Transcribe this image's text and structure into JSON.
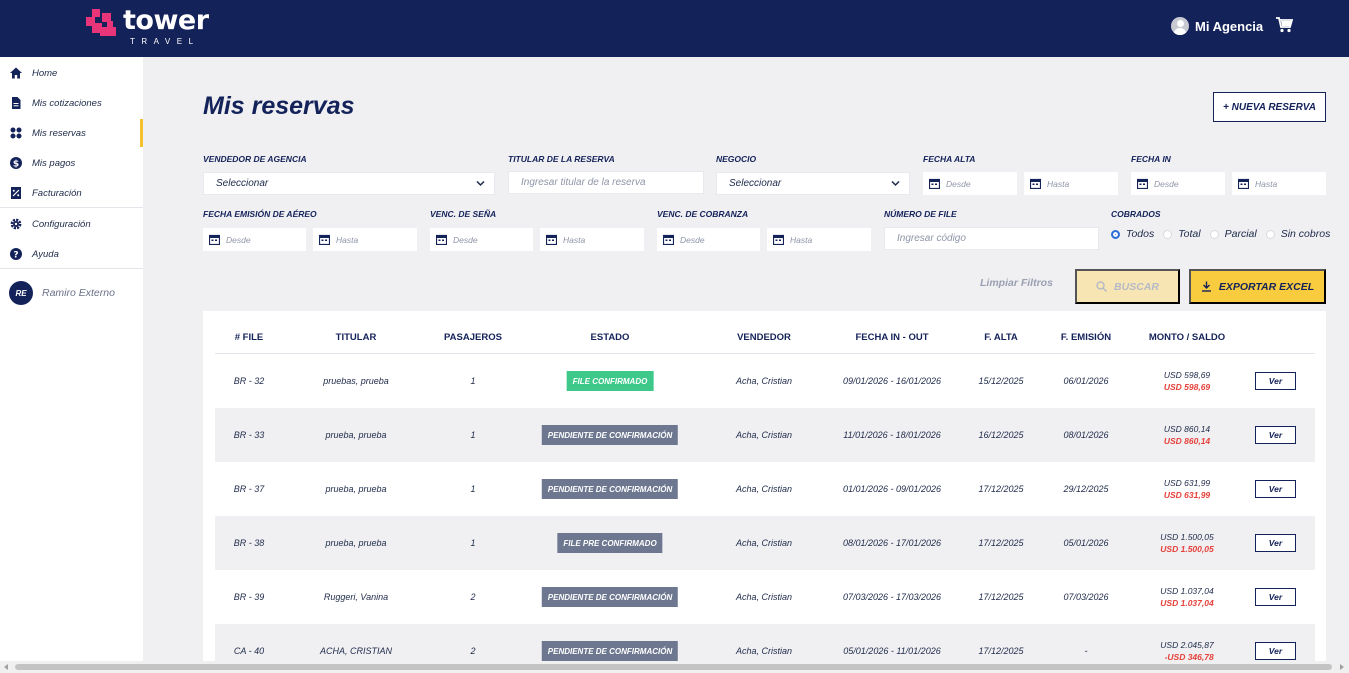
{
  "brand": {
    "name": "tower",
    "sub": "TRAVEL",
    "accent": "#e8357a",
    "navy": "#14225a"
  },
  "header": {
    "user_name": "Mi Agencia",
    "cart_icon": "cart-icon",
    "avatar_icon": "user-avatar-icon"
  },
  "sidebar": {
    "items": [
      {
        "label": "Home",
        "icon": "home-icon"
      },
      {
        "label": "Mis cotizaciones",
        "icon": "document-icon"
      },
      {
        "label": "Mis reservas",
        "icon": "grid-icon",
        "active": true
      },
      {
        "label": "Mis pagos",
        "icon": "dollar-icon"
      },
      {
        "label": "Facturación",
        "icon": "invoice-icon"
      },
      {
        "label": "Configuración",
        "icon": "gear-icon"
      },
      {
        "label": "Ayuda",
        "icon": "help-icon"
      }
    ],
    "user": {
      "initials": "RE",
      "name": "Ramiro Externo"
    }
  },
  "main": {
    "title": "Mis reservas",
    "new_button": "+ NUEVA RESERVA"
  },
  "filters": {
    "vendedor": {
      "label": "VENDEDOR DE AGENCIA",
      "value": "Seleccionar"
    },
    "titular": {
      "label": "TITULAR DE LA RESERVA",
      "placeholder": "Ingresar titular de la reserva"
    },
    "negocio": {
      "label": "NEGOCIO",
      "value": "Seleccionar"
    },
    "fecha_alta": {
      "label": "FECHA ALTA",
      "from": "Desde",
      "to": "Hasta"
    },
    "fecha_in": {
      "label": "FECHA IN",
      "from": "Desde",
      "to": "Hasta"
    },
    "fecha_emision": {
      "label": "FECHA EMISIÓN DE AÉREO",
      "from": "Desde",
      "to": "Hasta"
    },
    "venc_sena": {
      "label": "VENC. DE SEÑA",
      "from": "Desde",
      "to": "Hasta"
    },
    "venc_cobranza": {
      "label": "VENC. DE COBRANZA",
      "from": "Desde",
      "to": "Hasta"
    },
    "numero_file": {
      "label": "NÚMERO DE FILE",
      "placeholder": "Ingresar código"
    },
    "cobrados": {
      "label": "COBRADOS",
      "options": [
        "Todos",
        "Total",
        "Parcial",
        "Sin cobros"
      ],
      "selected": "Todos"
    },
    "clear": "Limpiar Filtros",
    "search": "BUSCAR",
    "export": "EXPORTAR EXCEL"
  },
  "table": {
    "headers": [
      "# FILE",
      "TITULAR",
      "PASAJEROS",
      "ESTADO",
      "VENDEDOR",
      "FECHA IN - OUT",
      "F. ALTA",
      "F. EMISIÓN",
      "MONTO / SALDO"
    ],
    "view_label": "Ver",
    "rows": [
      {
        "file": "BR - 32",
        "titular": "pruebas, prueba",
        "pasajeros": "1",
        "estado": "FILE CONFIRMADO",
        "estado_color": "#3ec98b",
        "vendedor": "Acha, Cristian",
        "fechas": "09/01/2026 - 16/01/2026",
        "alta": "15/12/2025",
        "emision": "06/01/2026",
        "monto": "USD 598,69",
        "saldo": "USD 598,69"
      },
      {
        "file": "BR - 33",
        "titular": "prueba, prueba",
        "pasajeros": "1",
        "estado": "PENDIENTE DE CONFIRMACIÓN",
        "estado_color": "#6d7890",
        "vendedor": "Acha, Cristian",
        "fechas": "11/01/2026 - 18/01/2026",
        "alta": "16/12/2025",
        "emision": "08/01/2026",
        "monto": "USD 860,14",
        "saldo": "USD 860,14"
      },
      {
        "file": "BR - 37",
        "titular": "prueba, prueba",
        "pasajeros": "1",
        "estado": "PENDIENTE DE CONFIRMACIÓN",
        "estado_color": "#6d7890",
        "vendedor": "Acha, Cristian",
        "fechas": "01/01/2026 - 09/01/2026",
        "alta": "17/12/2025",
        "emision": "29/12/2025",
        "monto": "USD 631,99",
        "saldo": "USD 631,99"
      },
      {
        "file": "BR - 38",
        "titular": "prueba, prueba",
        "pasajeros": "1",
        "estado": "FILE PRE CONFIRMADO",
        "estado_color": "#6d7890",
        "vendedor": "Acha, Cristian",
        "fechas": "08/01/2026 - 17/01/2026",
        "alta": "17/12/2025",
        "emision": "05/01/2026",
        "monto": "USD 1.500,05",
        "saldo": "USD 1.500,05"
      },
      {
        "file": "BR - 39",
        "titular": "Ruggeri, Vanina",
        "pasajeros": "2",
        "estado": "PENDIENTE DE CONFIRMACIÓN",
        "estado_color": "#6d7890",
        "vendedor": "Acha, Cristian",
        "fechas": "07/03/2026 - 17/03/2026",
        "alta": "17/12/2025",
        "emision": "07/03/2026",
        "monto": "USD 1.037,04",
        "saldo": "USD 1.037,04"
      },
      {
        "file": "CA - 40",
        "titular": "ACHA, CRISTIAN",
        "pasajeros": "2",
        "estado": "PENDIENTE DE CONFIRMACIÓN",
        "estado_color": "#6d7890",
        "vendedor": "Acha, Cristian",
        "fechas": "05/01/2026 - 11/01/2026",
        "alta": "17/12/2025",
        "emision": "-",
        "monto": "USD 2.045,87",
        "saldo": "-USD 346,78"
      }
    ]
  }
}
